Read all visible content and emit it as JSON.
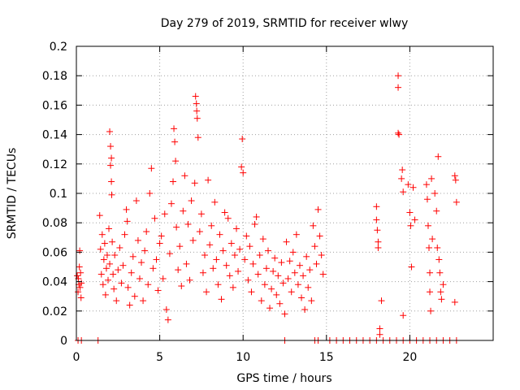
{
  "chart_data": {
    "type": "scatter",
    "title": "Day 279 of 2019, SRMTID for receiver wlwy",
    "xlabel": "GPS time / hours",
    "ylabel": "SRMTID / TECUs",
    "xlim": [
      0,
      25
    ],
    "ylim": [
      0,
      0.2
    ],
    "x_ticks": [
      0,
      5,
      10,
      15,
      20
    ],
    "y_ticks": [
      0,
      0.02,
      0.04,
      0.06,
      0.08,
      0.1,
      0.12,
      0.14,
      0.16,
      0.18,
      0.2
    ],
    "x_tick_labels": [
      "0",
      "5",
      "10",
      "15",
      "20"
    ],
    "y_tick_labels": [
      "0",
      "0.02",
      "0.04",
      "0.06",
      "0.08",
      "0.1",
      "0.12",
      "0.14",
      "0.16",
      "0.18",
      "0.2"
    ],
    "grid": true,
    "marker": "+",
    "marker_color": "#ff0000",
    "series": [
      {
        "name": "SRMTID",
        "points": [
          [
            0.1,
            0.033
          ],
          [
            0.12,
            0.042
          ],
          [
            0.15,
            0.038
          ],
          [
            0.18,
            0.05
          ],
          [
            0.2,
            0.061
          ],
          [
            0.22,
            0.036
          ],
          [
            0.25,
            0.046
          ],
          [
            0.28,
            0.029
          ],
          [
            0.05,
            0.044
          ],
          [
            0.3,
            0.039
          ],
          [
            0.1,
            0
          ],
          [
            0.3,
            0
          ],
          [
            1.3,
            0
          ],
          [
            1.4,
            0.085
          ],
          [
            1.45,
            0.062
          ],
          [
            1.5,
            0.045
          ],
          [
            1.55,
            0.072
          ],
          [
            1.6,
            0.038
          ],
          [
            1.65,
            0.055
          ],
          [
            1.7,
            0.066
          ],
          [
            1.75,
            0.031
          ],
          [
            1.8,
            0.049
          ],
          [
            1.85,
            0.058
          ],
          [
            1.9,
            0.041
          ],
          [
            1.95,
            0.076
          ],
          [
            2.0,
            0.052
          ],
          [
            2.0,
            0.142
          ],
          [
            2.05,
            0.132
          ],
          [
            2.05,
            0.119
          ],
          [
            2.1,
            0.124
          ],
          [
            2.1,
            0.108
          ],
          [
            2.12,
            0.099
          ],
          [
            2.15,
            0.067
          ],
          [
            2.2,
            0.045
          ],
          [
            2.25,
            0.035
          ],
          [
            2.3,
            0.058
          ],
          [
            2.4,
            0.027
          ],
          [
            2.5,
            0.048
          ],
          [
            2.6,
            0.063
          ],
          [
            2.7,
            0.039
          ],
          [
            2.8,
            0.051
          ],
          [
            2.9,
            0.072
          ],
          [
            3.0,
            0.089
          ],
          [
            3.05,
            0.081
          ],
          [
            3.1,
            0.036
          ],
          [
            3.2,
            0.024
          ],
          [
            3.3,
            0.046
          ],
          [
            3.4,
            0.057
          ],
          [
            3.5,
            0.03
          ],
          [
            3.6,
            0.095
          ],
          [
            3.7,
            0.068
          ],
          [
            3.8,
            0.042
          ],
          [
            3.9,
            0.053
          ],
          [
            4.0,
            0.027
          ],
          [
            4.1,
            0.061
          ],
          [
            4.2,
            0.074
          ],
          [
            4.3,
            0.038
          ],
          [
            4.4,
            0.1
          ],
          [
            4.5,
            0.117
          ],
          [
            4.6,
            0.049
          ],
          [
            4.7,
            0.083
          ],
          [
            4.8,
            0.055
          ],
          [
            4.9,
            0.034
          ],
          [
            5.0,
            0.066
          ],
          [
            5.1,
            0.071
          ],
          [
            5.2,
            0.042
          ],
          [
            5.3,
            0.086
          ],
          [
            5.4,
            0.021
          ],
          [
            5.5,
            0.014
          ],
          [
            5.6,
            0.059
          ],
          [
            5.7,
            0.093
          ],
          [
            5.8,
            0.108
          ],
          [
            5.85,
            0.144
          ],
          [
            5.9,
            0.135
          ],
          [
            5.95,
            0.122
          ],
          [
            6.0,
            0.077
          ],
          [
            6.1,
            0.048
          ],
          [
            6.2,
            0.064
          ],
          [
            6.3,
            0.037
          ],
          [
            6.4,
            0.088
          ],
          [
            6.5,
            0.112
          ],
          [
            6.6,
            0.052
          ],
          [
            6.7,
            0.079
          ],
          [
            6.8,
            0.041
          ],
          [
            6.9,
            0.095
          ],
          [
            7.0,
            0.068
          ],
          [
            7.1,
            0.107
          ],
          [
            7.15,
            0.166
          ],
          [
            7.2,
            0.161
          ],
          [
            7.22,
            0.156
          ],
          [
            7.25,
            0.151
          ],
          [
            7.3,
            0.138
          ],
          [
            7.4,
            0.074
          ],
          [
            7.5,
            0.086
          ],
          [
            7.6,
            0.046
          ],
          [
            7.7,
            0.058
          ],
          [
            7.8,
            0.033
          ],
          [
            7.9,
            0.109
          ],
          [
            8.0,
            0.065
          ],
          [
            8.1,
            0.078
          ],
          [
            8.2,
            0.049
          ],
          [
            8.3,
            0.094
          ],
          [
            8.4,
            0.055
          ],
          [
            8.5,
            0.038
          ],
          [
            8.6,
            0.072
          ],
          [
            8.7,
            0.028
          ],
          [
            8.8,
            0.061
          ],
          [
            8.9,
            0.087
          ],
          [
            9.0,
            0.051
          ],
          [
            9.1,
            0.083
          ],
          [
            9.2,
            0.044
          ],
          [
            9.3,
            0.066
          ],
          [
            9.4,
            0.036
          ],
          [
            9.5,
            0.058
          ],
          [
            9.6,
            0.076
          ],
          [
            9.7,
            0.047
          ],
          [
            9.8,
            0.062
          ],
          [
            9.9,
            0.118
          ],
          [
            9.95,
            0.137
          ],
          [
            10.0,
            0.114
          ],
          [
            10.1,
            0.055
          ],
          [
            10.2,
            0.071
          ],
          [
            10.3,
            0.041
          ],
          [
            10.4,
            0.064
          ],
          [
            10.5,
            0.033
          ],
          [
            10.6,
            0.052
          ],
          [
            10.7,
            0.079
          ],
          [
            10.8,
            0.084
          ],
          [
            10.9,
            0.045
          ],
          [
            11.0,
            0.058
          ],
          [
            11.1,
            0.027
          ],
          [
            11.2,
            0.069
          ],
          [
            11.3,
            0.038
          ],
          [
            11.4,
            0.049
          ],
          [
            11.5,
            0.061
          ],
          [
            11.6,
            0.022
          ],
          [
            11.7,
            0.035
          ],
          [
            11.8,
            0.047
          ],
          [
            11.9,
            0.056
          ],
          [
            12.0,
            0.031
          ],
          [
            12.1,
            0.044
          ],
          [
            12.2,
            0.025
          ],
          [
            12.3,
            0.053
          ],
          [
            12.4,
            0.039
          ],
          [
            12.5,
            0.018
          ],
          [
            12.6,
            0.067
          ],
          [
            12.7,
            0.042
          ],
          [
            12.8,
            0.054
          ],
          [
            12.9,
            0.033
          ],
          [
            13.0,
            0.06
          ],
          [
            13.1,
            0.046
          ],
          [
            13.2,
            0.072
          ],
          [
            13.3,
            0.038
          ],
          [
            13.4,
            0.051
          ],
          [
            13.5,
            0.029
          ],
          [
            13.6,
            0.044
          ],
          [
            13.7,
            0.021
          ],
          [
            13.8,
            0.057
          ],
          [
            13.9,
            0.036
          ],
          [
            14.0,
            0.048
          ],
          [
            14.1,
            0.027
          ],
          [
            14.2,
            0.078
          ],
          [
            14.3,
            0.064
          ],
          [
            14.4,
            0.052
          ],
          [
            14.5,
            0.089
          ],
          [
            14.6,
            0.071
          ],
          [
            14.7,
            0.058
          ],
          [
            14.8,
            0.045
          ],
          [
            12.5,
            0
          ],
          [
            14.3,
            0
          ],
          [
            14.5,
            0
          ],
          [
            15.2,
            0
          ],
          [
            15.6,
            0
          ],
          [
            16.0,
            0
          ],
          [
            16.4,
            0
          ],
          [
            16.8,
            0
          ],
          [
            17.2,
            0
          ],
          [
            17.6,
            0
          ],
          [
            18.0,
            0
          ],
          [
            18.4,
            0
          ],
          [
            18.8,
            0
          ],
          [
            19.2,
            0
          ],
          [
            19.6,
            0
          ],
          [
            20.0,
            0
          ],
          [
            20.4,
            0
          ],
          [
            20.8,
            0
          ],
          [
            21.2,
            0
          ],
          [
            21.6,
            0
          ],
          [
            22.0,
            0
          ],
          [
            22.4,
            0
          ],
          [
            22.8,
            0
          ],
          [
            18.0,
            0.091
          ],
          [
            18.0,
            0.082
          ],
          [
            18.05,
            0.075
          ],
          [
            18.1,
            0.067
          ],
          [
            18.1,
            0.063
          ],
          [
            18.2,
            0.008
          ],
          [
            18.2,
            0.004
          ],
          [
            18.3,
            0.027
          ],
          [
            19.3,
            0.18
          ],
          [
            19.3,
            0.172
          ],
          [
            19.3,
            0.141
          ],
          [
            19.35,
            0.14
          ],
          [
            19.5,
            0.11
          ],
          [
            19.55,
            0.116
          ],
          [
            19.6,
            0.101
          ],
          [
            19.6,
            0.017
          ],
          [
            19.9,
            0.106
          ],
          [
            20.0,
            0.087
          ],
          [
            20.05,
            0.078
          ],
          [
            20.1,
            0.05
          ],
          [
            20.2,
            0.104
          ],
          [
            20.3,
            0.082
          ],
          [
            21.0,
            0.106
          ],
          [
            21.05,
            0.096
          ],
          [
            21.1,
            0.078
          ],
          [
            21.15,
            0.063
          ],
          [
            21.2,
            0.046
          ],
          [
            21.2,
            0.033
          ],
          [
            21.25,
            0.02
          ],
          [
            21.3,
            0.11
          ],
          [
            21.35,
            0.069
          ],
          [
            21.5,
            0.1
          ],
          [
            21.6,
            0.088
          ],
          [
            21.65,
            0.063
          ],
          [
            21.7,
            0.125
          ],
          [
            21.75,
            0.055
          ],
          [
            21.8,
            0.046
          ],
          [
            21.85,
            0.033
          ],
          [
            21.9,
            0.028
          ],
          [
            22.0,
            0.038
          ],
          [
            22.7,
            0.112
          ],
          [
            22.75,
            0.109
          ],
          [
            22.8,
            0.094
          ],
          [
            22.7,
            0.026
          ]
        ]
      }
    ]
  }
}
